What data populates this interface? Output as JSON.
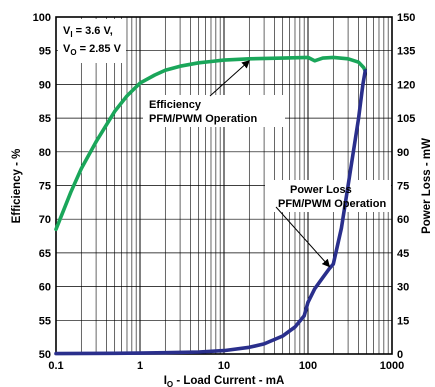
{
  "chart_data": {
    "type": "line",
    "x_scale": "log",
    "grid": true,
    "xlim": [
      0.1,
      1000
    ],
    "ylim_left": [
      50,
      100
    ],
    "ylim_right": [
      0,
      150
    ],
    "xlabel": {
      "main": "I",
      "sub": "O",
      "rest": " - Load Current - mA"
    },
    "ylabel_left": "Efficiency - %",
    "ylabel_right": "Power Loss - mW",
    "x_ticks": [
      "0.1",
      "1",
      "10",
      "100",
      "1000"
    ],
    "y_left_ticks": [
      "50",
      "55",
      "60",
      "65",
      "70",
      "75",
      "80",
      "85",
      "90",
      "95",
      "100"
    ],
    "y_right_ticks": [
      "0",
      "15",
      "30",
      "45",
      "60",
      "75",
      "90",
      "105",
      "120",
      "135",
      "150"
    ],
    "conditions": [
      {
        "main": "V",
        "sub": "I",
        "rest": " = 3.6 V,"
      },
      {
        "main": "V",
        "sub": "O",
        "rest": " = 2.85 V"
      }
    ],
    "series": [
      {
        "name": "Efficiency PFM/PWM Operation",
        "axis": "left",
        "color": "#1aa65a",
        "x": [
          0.1,
          0.15,
          0.2,
          0.3,
          0.5,
          0.7,
          1,
          1.5,
          2,
          3,
          5,
          7,
          10,
          20,
          50,
          100,
          120,
          150,
          200,
          300,
          400,
          460,
          480
        ],
        "y": [
          68.5,
          74,
          77.5,
          81.5,
          86,
          88.3,
          90.2,
          91.4,
          92.1,
          92.7,
          93.2,
          93.4,
          93.6,
          93.8,
          93.9,
          94,
          93.5,
          93.9,
          94,
          93.8,
          93.3,
          92.5,
          92
        ]
      },
      {
        "name": "Power Loss PFM/PWM Operation",
        "axis": "right",
        "color": "#2a2f8c",
        "x": [
          0.1,
          0.5,
          1,
          2,
          5,
          10,
          20,
          30,
          50,
          70,
          90,
          100,
          120,
          150,
          180,
          200,
          250,
          300,
          400,
          450,
          480
        ],
        "y": [
          0.2,
          0.3,
          0.4,
          0.6,
          0.9,
          1.5,
          3,
          4.5,
          8,
          12,
          17,
          23,
          29,
          34,
          38,
          40,
          56,
          75,
          105,
          120,
          126
        ]
      }
    ],
    "annotations": [
      {
        "lines": [
          "Efficiency",
          "PFM/PWM Operation"
        ],
        "series": 0
      },
      {
        "lines": [
          "Power Loss",
          "PFM/PWM Operation"
        ],
        "series": 1
      }
    ]
  }
}
